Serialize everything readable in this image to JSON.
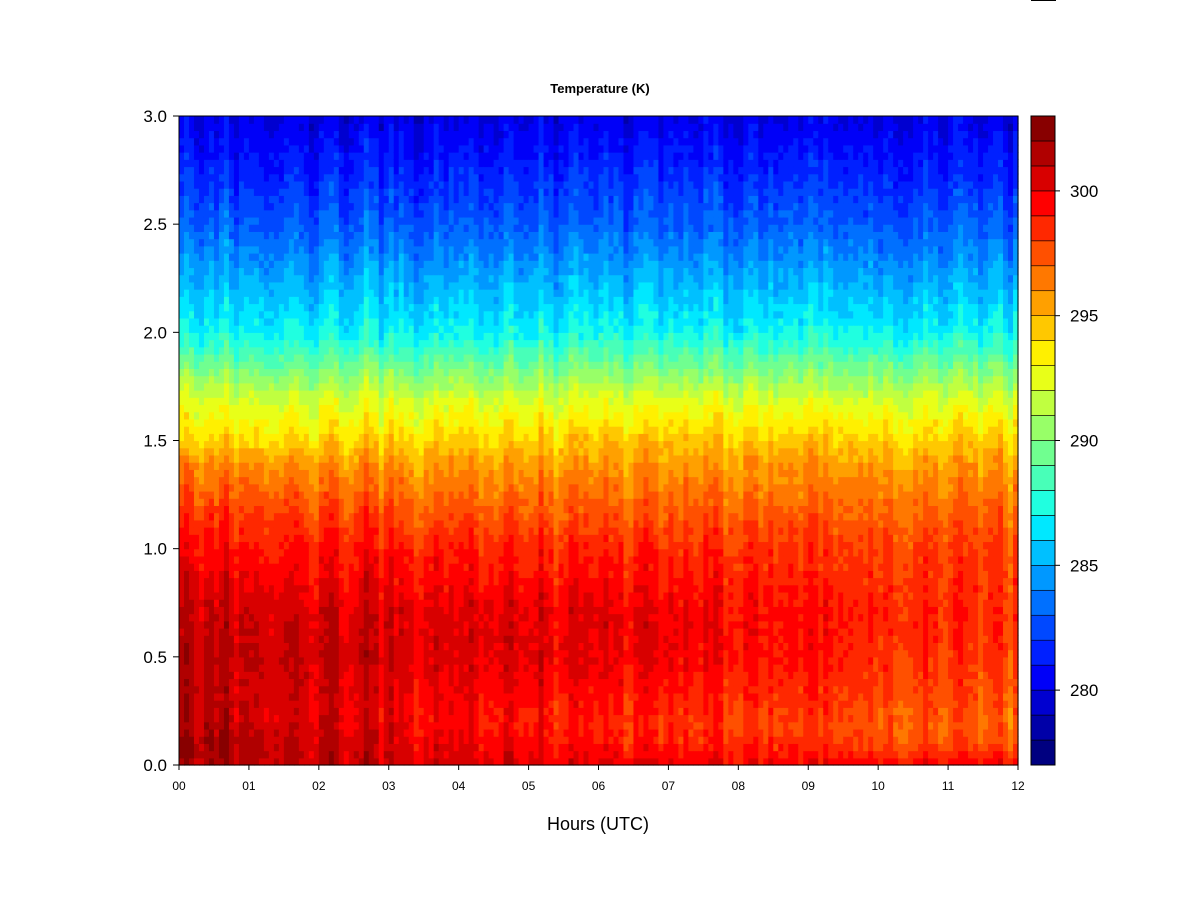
{
  "chart_data": {
    "type": "heatmap",
    "title": "Temperature (K)",
    "xlabel": "Hours (UTC)",
    "ylabel": "",
    "x_ticks": [
      "00",
      "01",
      "02",
      "03",
      "04",
      "05",
      "06",
      "07",
      "08",
      "09",
      "10",
      "11",
      "12"
    ],
    "xlim": [
      0,
      12
    ],
    "y_ticks": [
      "0.0",
      "0.5",
      "1.0",
      "1.5",
      "2.0",
      "2.5",
      "3.0"
    ],
    "ylim": [
      0,
      3
    ],
    "colorbar": {
      "min": 277,
      "max": 303,
      "step": 1,
      "tick_values": [
        280,
        285,
        290,
        295,
        300
      ],
      "tick_labels": [
        "280",
        "285",
        "290",
        "295",
        "300"
      ],
      "colors": [
        "#000080",
        "#0000a8",
        "#0000d0",
        "#0000f8",
        "#0020ff",
        "#0048ff",
        "#0070ff",
        "#0098ff",
        "#00c0ff",
        "#00e8ff",
        "#20ffe0",
        "#48ffb8",
        "#70ff90",
        "#98ff68",
        "#c0ff40",
        "#e8ff18",
        "#fff000",
        "#ffc800",
        "#ffa000",
        "#ff7800",
        "#ff5000",
        "#ff2800",
        "#ff0000",
        "#d80000",
        "#b00000",
        "#880000"
      ]
    },
    "profile": {
      "heights": [
        0.0,
        0.05,
        0.1,
        0.2,
        0.3,
        0.5,
        0.7,
        1.0,
        1.2,
        1.4,
        1.5,
        1.7,
        2.0,
        2.5,
        3.0
      ],
      "hour_00": [
        301.5,
        302.0,
        302.0,
        301.5,
        301.2,
        301.3,
        301.0,
        299.5,
        298.0,
        296.0,
        294.0,
        292.0,
        287.0,
        283.0,
        280.0
      ],
      "hour_06": [
        300.0,
        299.5,
        299.0,
        298.5,
        299.0,
        300.0,
        300.0,
        298.5,
        297.0,
        295.5,
        294.5,
        292.0,
        287.0,
        283.0,
        280.0
      ],
      "hour_12": [
        299.5,
        298.5,
        297.5,
        297.0,
        297.5,
        298.0,
        298.5,
        298.0,
        297.0,
        295.5,
        294.5,
        292.0,
        287.0,
        283.0,
        280.0
      ]
    }
  }
}
